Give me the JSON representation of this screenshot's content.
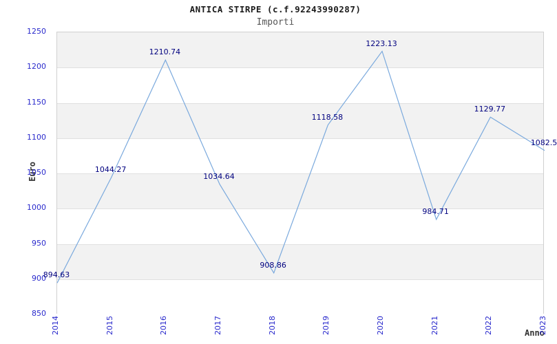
{
  "chart_data": {
    "type": "line",
    "title": "ANTICA STIRPE (c.f.92243990287)",
    "subtitle": "Importi",
    "xlabel": "Anno",
    "ylabel": "Euro",
    "categories": [
      "2014",
      "2015",
      "2016",
      "2017",
      "2018",
      "2019",
      "2020",
      "2021",
      "2022",
      "2023"
    ],
    "series": [
      {
        "name": "Importi",
        "values": [
          894.63,
          1044.27,
          1210.74,
          1034.64,
          908.86,
          1118.58,
          1223.13,
          984.71,
          1129.77,
          1082.5
        ]
      }
    ],
    "point_labels": [
      "894.63",
      "1044.27",
      "1210.74",
      "1034.64",
      "908.86",
      "1118.58",
      "1223.13",
      "984.71",
      "1129.77",
      "1082.5"
    ],
    "ylim": [
      850,
      1250
    ],
    "ytick_step": 50,
    "yticks": [
      "850",
      "900",
      "950",
      "1000",
      "1050",
      "1100",
      "1150",
      "1200",
      "1250"
    ],
    "grid": "horizontal-bands",
    "legend": "none",
    "colors": {
      "line": "#7aa9dd",
      "tick_label": "#2929cc",
      "point_label": "#00007f",
      "band_gray": "#f2f2f2",
      "band_white": "#ffffff",
      "gridline": "#e0e0e0",
      "plot_border": "#d0d0d0",
      "title": "#1a1a1a",
      "subtitle": "#555555",
      "axis_label": "#333333"
    }
  }
}
